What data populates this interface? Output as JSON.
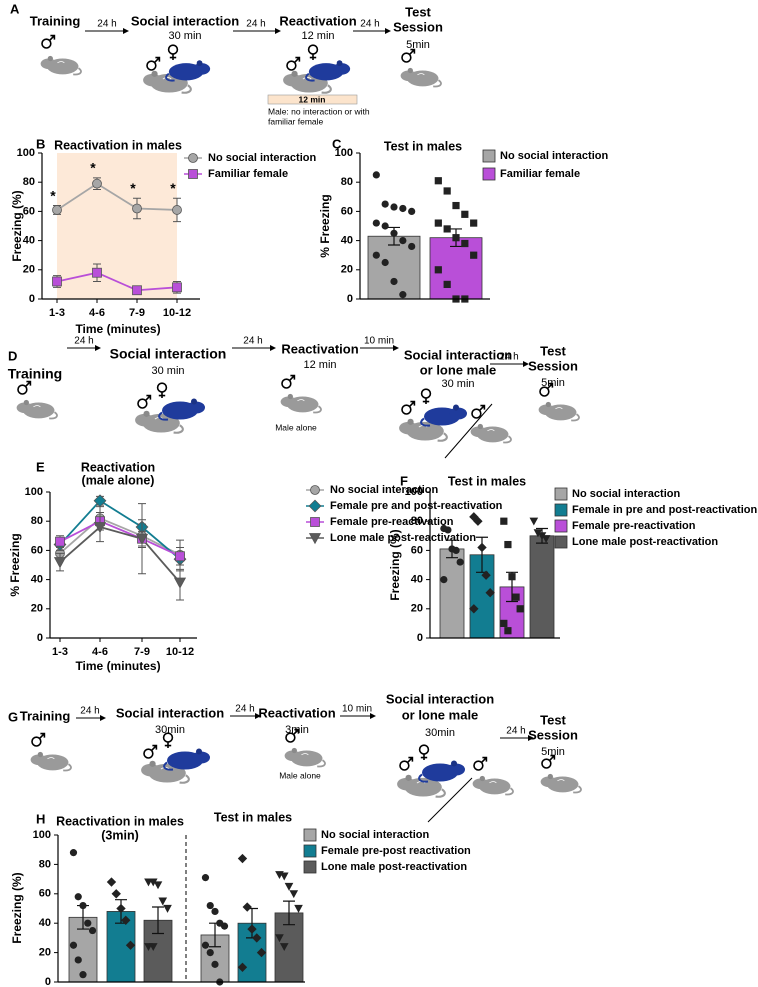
{
  "panels": {
    "a": "A",
    "b": "B",
    "c": "C",
    "d": "D",
    "e": "E",
    "f": "F",
    "g": "G",
    "h": "H"
  },
  "timeline_a": {
    "steps": [
      {
        "label_lines": [
          "Training"
        ]
      },
      {
        "label_lines": [
          "Social interaction"
        ],
        "duration": "30 min"
      },
      {
        "label_lines": [
          "Reactivation"
        ],
        "duration": "12 min"
      },
      {
        "label_lines": [
          "Test",
          "Session"
        ],
        "duration": "5min"
      }
    ],
    "intervals": [
      "24 h",
      "24 h",
      "24 h"
    ],
    "bar_label": "12 min",
    "note_lines": [
      "Male: no interaction or with",
      "familiar female"
    ]
  },
  "timeline_d": {
    "steps": [
      {
        "label_lines": [
          "Training"
        ]
      },
      {
        "label_lines": [
          "Social interaction"
        ],
        "duration": "30 min"
      },
      {
        "label_lines": [
          "Reactivation"
        ],
        "duration": "12 min",
        "note": "Male alone"
      },
      {
        "label_lines": [
          "Social interaction",
          "or lone male"
        ],
        "duration": "30 min"
      },
      {
        "label_lines": [
          "Test",
          "Session"
        ],
        "duration": "5min"
      }
    ],
    "intervals": [
      "24 h",
      "24 h",
      "10 min",
      "24 h"
    ]
  },
  "timeline_g": {
    "steps": [
      {
        "label_lines": [
          "Training"
        ]
      },
      {
        "label_lines": [
          "Social interaction"
        ],
        "duration": "30min"
      },
      {
        "label_lines": [
          "Reactivation"
        ],
        "duration": "3min",
        "note": "Male alone"
      },
      {
        "label_lines": [
          "Social interaction",
          "or lone male"
        ],
        "duration": "30min"
      },
      {
        "label_lines": [
          "Test",
          "Session"
        ],
        "duration": "5min"
      }
    ],
    "intervals": [
      "24 h",
      "24 h",
      "10 min",
      "24 h"
    ]
  },
  "chart_data": [
    {
      "type": "line",
      "title": "Reactivation in males",
      "xlabel": "Time (minutes)",
      "ylabel": "Freezing (%)",
      "categories": [
        "1-3",
        "4-6",
        "7-9",
        "10-12"
      ],
      "ylim": [
        0,
        100
      ],
      "yticks": [
        0,
        20,
        40,
        60,
        80,
        100
      ],
      "shade": "#fde9d8",
      "legend": true,
      "series": [
        {
          "name": "No social interaction",
          "color": "#a6a6a6",
          "marker": "circle",
          "values": [
            61,
            79,
            62,
            61
          ],
          "errors": [
            3,
            4,
            7,
            8
          ],
          "significance": [
            "*",
            "*",
            "*",
            "*"
          ]
        },
        {
          "name": "Familiar female",
          "color": "#b94fd8",
          "marker": "square",
          "values": [
            12,
            18,
            6,
            8
          ],
          "errors": [
            4,
            6,
            2,
            4
          ]
        }
      ]
    },
    {
      "type": "bar",
      "title": "Test in males",
      "ylabel": "% Freezing",
      "ylim": [
        0,
        100
      ],
      "yticks": [
        0,
        20,
        40,
        60,
        80,
        100
      ],
      "legend": true,
      "series": [
        {
          "name": "No social interaction",
          "color": "#a6a6a6",
          "marker": "circle",
          "values": [
            43
          ],
          "errors": [
            6
          ],
          "points": [
            [
              85,
              65,
              63,
              62,
              60,
              52,
              50,
              45,
              40,
              36,
              30,
              25,
              12,
              3
            ]
          ]
        },
        {
          "name": "Familiar female",
          "color": "#b94fd8",
          "marker": "square",
          "values": [
            42
          ],
          "errors": [
            6
          ],
          "points": [
            [
              81,
              74,
              64,
              58,
              52,
              52,
              48,
              42,
              38,
              30,
              20,
              10,
              0,
              0
            ]
          ]
        }
      ]
    },
    {
      "type": "line",
      "title_lines": [
        "Reactivation",
        "(male alone)"
      ],
      "xlabel": "Time (minutes)",
      "ylabel": "% Freezing",
      "categories": [
        "1-3",
        "4-6",
        "7-9",
        "10-12"
      ],
      "ylim": [
        0,
        100
      ],
      "yticks": [
        0,
        20,
        40,
        60,
        80,
        100
      ],
      "legend": true,
      "series": [
        {
          "name": "No social interaction",
          "color": "#a6a6a6",
          "marker": "circle",
          "values": [
            58,
            82,
            70,
            57
          ],
          "errors": [
            5,
            8,
            8,
            10
          ]
        },
        {
          "name": "Female pre and post-reactivation",
          "color": "#127d91",
          "marker": "diamond",
          "values": [
            64,
            94,
            76,
            54
          ],
          "errors": [
            4,
            3,
            5,
            8
          ]
        },
        {
          "name": "Female pre-reactivation",
          "color": "#b94fd8",
          "marker": "square",
          "values": [
            66,
            80,
            68,
            56
          ],
          "errors": [
            4,
            6,
            5,
            6
          ]
        },
        {
          "name": "Lone male post-reactivation",
          "color": "#5b5b5b",
          "marker": "triangle-down",
          "values": [
            52,
            76,
            68,
            38
          ],
          "errors": [
            6,
            10,
            24,
            12
          ]
        }
      ]
    },
    {
      "type": "bar",
      "title": "Test in males",
      "ylabel": "Freezing (%)",
      "ylim": [
        0,
        100
      ],
      "yticks": [
        0,
        20,
        40,
        60,
        80,
        100
      ],
      "legend": true,
      "series": [
        {
          "name": "No social interaction",
          "color": "#a6a6a6",
          "marker": "circle",
          "values": [
            61
          ],
          "errors": [
            6
          ],
          "points": [
            [
              75,
              74,
              61,
              60,
              52,
              40
            ]
          ]
        },
        {
          "name": "Female in pre and post-reactivation",
          "color": "#127d91",
          "marker": "diamond",
          "values": [
            57
          ],
          "errors": [
            12
          ],
          "points": [
            [
              83,
              80,
              62,
              43,
              31,
              20
            ]
          ]
        },
        {
          "name": "Female pre-reactivation",
          "color": "#b94fd8",
          "marker": "square",
          "values": [
            35
          ],
          "errors": [
            10
          ],
          "points": [
            [
              80,
              64,
              42,
              28,
              20,
              10,
              5
            ]
          ]
        },
        {
          "name": "Lone male post-reactivation",
          "color": "#5b5b5b",
          "marker": "triangle-down",
          "values": [
            70
          ],
          "errors": [
            5
          ],
          "points": [
            [
              80,
              72,
              70,
              68
            ]
          ]
        }
      ]
    },
    {
      "type": "bar",
      "ylabel": "Freezing (%)",
      "ylim": [
        0,
        100
      ],
      "yticks": [
        0,
        20,
        40,
        60,
        80,
        100
      ],
      "legend": true,
      "divider": true,
      "groups": [
        {
          "title_lines": [
            "Reactivation in males",
            "(3min)"
          ]
        },
        {
          "title_lines": [
            "Test in males"
          ]
        }
      ],
      "series": [
        {
          "name": "No social interaction",
          "color": "#a6a6a6",
          "marker": "circle",
          "values": [
            44,
            32
          ],
          "errors": [
            8,
            8
          ],
          "points": [
            [
              88,
              58,
              52,
              40,
              35,
              25,
              15,
              5
            ],
            [
              71,
              52,
              48,
              40,
              38,
              25,
              20,
              12,
              0
            ]
          ]
        },
        {
          "name": "Female pre-post reactivation",
          "color": "#127d91",
          "marker": "diamond",
          "values": [
            48,
            40
          ],
          "errors": [
            8,
            10
          ],
          "points": [
            [
              68,
              60,
              50,
              42,
              25
            ],
            [
              84,
              51,
              36,
              30,
              20,
              10
            ]
          ]
        },
        {
          "name": "Lone male post-reactivation",
          "color": "#5b5b5b",
          "marker": "triangle-down",
          "values": [
            42,
            47
          ],
          "errors": [
            9,
            8
          ],
          "points": [
            [
              68,
              68,
              66,
              55,
              50,
              24,
              24
            ],
            [
              73,
              72,
              65,
              60,
              50,
              30,
              24
            ]
          ]
        }
      ]
    }
  ]
}
